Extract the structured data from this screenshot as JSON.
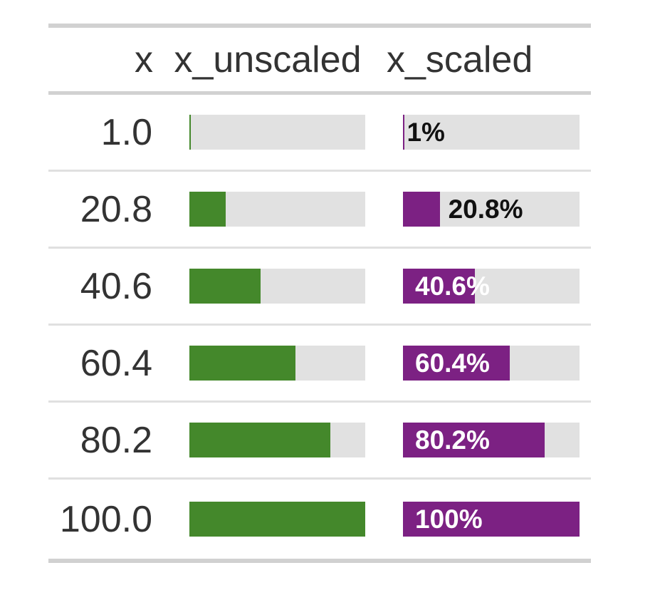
{
  "table": {
    "columns": [
      {
        "id": "x",
        "label": "x"
      },
      {
        "id": "x_unscaled",
        "label": "x_unscaled"
      },
      {
        "id": "x_scaled",
        "label": "x_scaled"
      }
    ],
    "rows": [
      {
        "x": "1.0",
        "unscaled_pct": 1,
        "scaled_pct": 1,
        "scaled_label": "1%",
        "label_inside": false,
        "label_gap": 3
      },
      {
        "x": "20.8",
        "unscaled_pct": 20.8,
        "scaled_pct": 20.8,
        "scaled_label": "20.8%",
        "label_inside": false,
        "label_gap": 12
      },
      {
        "x": "40.6",
        "unscaled_pct": 40.6,
        "scaled_pct": 40.6,
        "scaled_label": "40.6%",
        "label_inside": true,
        "label_gap": 0
      },
      {
        "x": "60.4",
        "unscaled_pct": 60.4,
        "scaled_pct": 60.4,
        "scaled_label": "60.4%",
        "label_inside": true,
        "label_gap": 0
      },
      {
        "x": "80.2",
        "unscaled_pct": 80.2,
        "scaled_pct": 80.2,
        "scaled_label": "80.2%",
        "label_inside": true,
        "label_gap": 0
      },
      {
        "x": "100.0",
        "unscaled_pct": 100,
        "scaled_pct": 100,
        "scaled_label": "100%",
        "label_inside": true,
        "label_gap": 0
      }
    ],
    "colors": {
      "bar_fill_unscaled": "#44882B",
      "bar_fill_scaled": "#7C2183",
      "bar_background": "#E1E1E1",
      "text": "#333333",
      "border_strong": "#D1D1D1",
      "row_divider": "#E0E0E0",
      "label_inside": "#FFFFFF",
      "label_outside": "#111111"
    }
  },
  "chart_data": {
    "type": "bar",
    "title": "",
    "xlabel": "",
    "ylabel": "",
    "categories": [
      1.0,
      20.8,
      40.6,
      60.4,
      80.2,
      100.0
    ],
    "series": [
      {
        "name": "x_unscaled",
        "values": [
          1.0,
          20.8,
          40.6,
          60.4,
          80.2,
          100.0
        ],
        "unit": "percent of bar filled",
        "color": "#44882B",
        "labels": []
      },
      {
        "name": "x_scaled",
        "values": [
          1.0,
          20.8,
          40.6,
          60.4,
          80.2,
          100.0
        ],
        "unit": "percent of bar filled",
        "color": "#7C2183",
        "labels": [
          "1%",
          "20.8%",
          "40.6%",
          "60.4%",
          "80.2%",
          "100%"
        ]
      }
    ],
    "xlim": [
      0,
      100
    ],
    "grid": false,
    "legend_position": "none",
    "layout_hint": "table with inline horizontal percentage bars; gray track background #E1E1E1"
  }
}
